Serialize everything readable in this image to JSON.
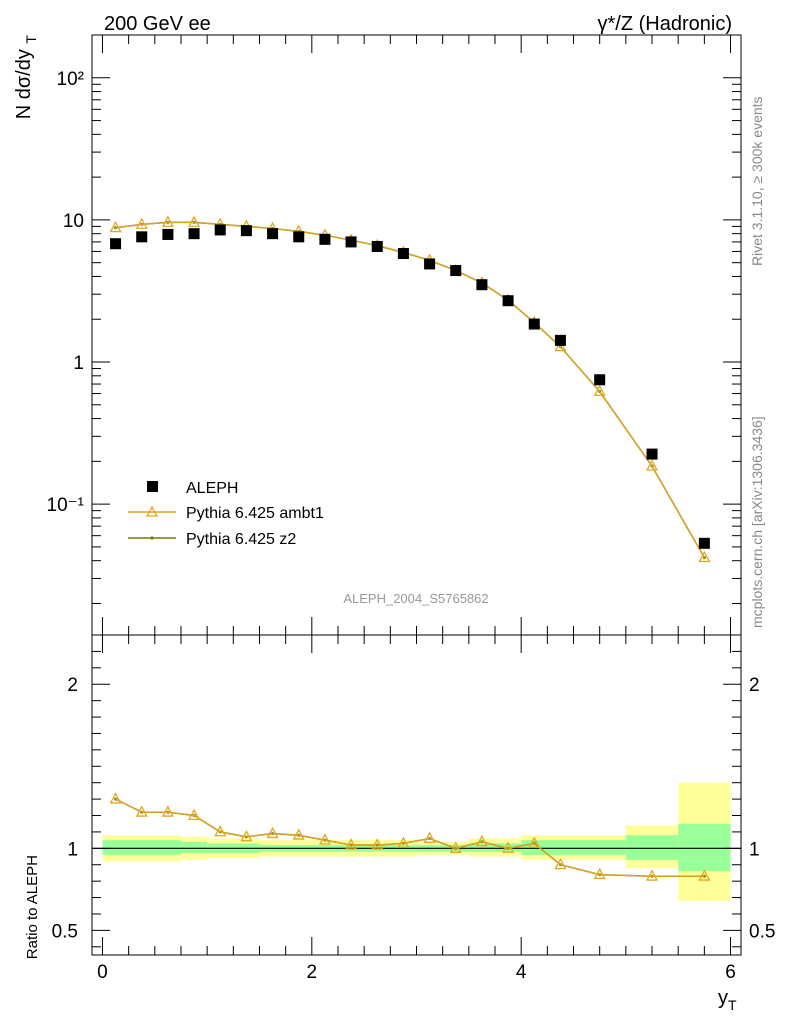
{
  "header": {
    "energy_label": "200 GeV ee",
    "process_label": "γ*/Z (Hadronic)"
  },
  "side_labels": {
    "rivet": "Rivet 3.1.10, ≥ 300k events",
    "mcplots": "mcplots.cern.ch [arXiv:1306.3436]"
  },
  "analysis_id": "ALEPH_2004_S5765862",
  "colors": {
    "data": "#000000",
    "ambt1": "#e3a61e",
    "z2": "#7a7a00",
    "band_inner": "#99ff99",
    "band_outer": "#ffff99"
  },
  "chart_data": [
    {
      "type": "scatter",
      "role": "main",
      "ylabel": "N dσ/dy_T",
      "y_scale": "log",
      "xlim": [
        -0.1,
        6.1
      ],
      "ylim": [
        0.012,
        200
      ],
      "y_ticks": [
        "10⁻¹",
        "1",
        "10",
        "10²"
      ],
      "legend": {
        "placement": "bottom-left",
        "entries": [
          "ALEPH",
          "Pythia 6.425 ambt1",
          "Pythia 6.425 z2"
        ]
      },
      "x": [
        0.125,
        0.375,
        0.625,
        0.875,
        1.125,
        1.375,
        1.625,
        1.875,
        2.125,
        2.375,
        2.625,
        2.875,
        3.125,
        3.375,
        3.625,
        3.875,
        4.125,
        4.375,
        4.75,
        5.25,
        5.75
      ],
      "series": [
        {
          "name": "ALEPH",
          "values": [
            6.8,
            7.6,
            7.9,
            8.0,
            8.5,
            8.4,
            8.0,
            7.6,
            7.3,
            7.0,
            6.5,
            5.8,
            4.9,
            4.4,
            3.5,
            2.7,
            1.85,
            1.42,
            0.75,
            0.225,
            0.053
          ]
        },
        {
          "name": "Pythia 6.425 ambt1",
          "values": [
            8.8,
            9.3,
            9.6,
            9.6,
            9.3,
            9.0,
            8.7,
            8.3,
            7.8,
            7.2,
            6.6,
            5.9,
            5.2,
            4.4,
            3.6,
            2.72,
            1.9,
            1.28,
            0.62,
            0.185,
            0.042
          ]
        },
        {
          "name": "Pythia 6.425 z2",
          "values": [
            8.8,
            9.3,
            9.6,
            9.6,
            9.3,
            9.0,
            8.7,
            8.3,
            7.8,
            7.2,
            6.6,
            5.9,
            5.2,
            4.4,
            3.6,
            2.72,
            1.9,
            1.28,
            0.62,
            0.185,
            0.042
          ]
        }
      ]
    },
    {
      "type": "line",
      "role": "ratio",
      "ylabel": "Ratio to ALEPH",
      "xlabel": "y_T",
      "xlim": [
        -0.1,
        6.1
      ],
      "ylim": [
        0.35,
        2.3
      ],
      "x_ticks": [
        "0",
        "2",
        "4",
        "6"
      ],
      "y_ticks": [
        "0.5",
        "1",
        "2"
      ],
      "x": [
        0.125,
        0.375,
        0.625,
        0.875,
        1.125,
        1.375,
        1.625,
        1.875,
        2.125,
        2.375,
        2.625,
        2.875,
        3.125,
        3.375,
        3.625,
        3.875,
        4.125,
        4.375,
        4.75,
        5.25,
        5.75
      ],
      "series": [
        {
          "name": "Pythia 6.425 ambt1",
          "values": [
            1.3,
            1.22,
            1.22,
            1.2,
            1.1,
            1.07,
            1.09,
            1.08,
            1.05,
            1.02,
            1.02,
            1.03,
            1.06,
            1.0,
            1.04,
            1.0,
            1.03,
            0.9,
            0.84,
            0.83,
            0.83
          ]
        },
        {
          "name": "Pythia 6.425 z2",
          "values": [
            1.3,
            1.22,
            1.22,
            1.2,
            1.1,
            1.07,
            1.09,
            1.08,
            1.05,
            1.02,
            1.02,
            1.03,
            1.06,
            1.0,
            1.04,
            1.0,
            1.03,
            0.9,
            0.84,
            0.83,
            0.83
          ]
        }
      ],
      "bands": {
        "edges": [
          0,
          0.75,
          1.0,
          1.5,
          3.0,
          3.5,
          4.0,
          5.0,
          5.5,
          6.0
        ],
        "inner_lo": [
          0.96,
          0.97,
          0.97,
          0.98,
          0.98,
          0.98,
          0.96,
          0.93,
          0.86
        ],
        "inner_hi": [
          1.05,
          1.04,
          1.03,
          1.02,
          1.02,
          1.03,
          1.05,
          1.08,
          1.15
        ],
        "outer_lo": [
          0.92,
          0.93,
          0.94,
          0.95,
          0.96,
          0.95,
          0.93,
          0.88,
          0.68
        ],
        "outer_hi": [
          1.08,
          1.07,
          1.06,
          1.05,
          1.04,
          1.06,
          1.08,
          1.14,
          1.4
        ]
      }
    }
  ]
}
